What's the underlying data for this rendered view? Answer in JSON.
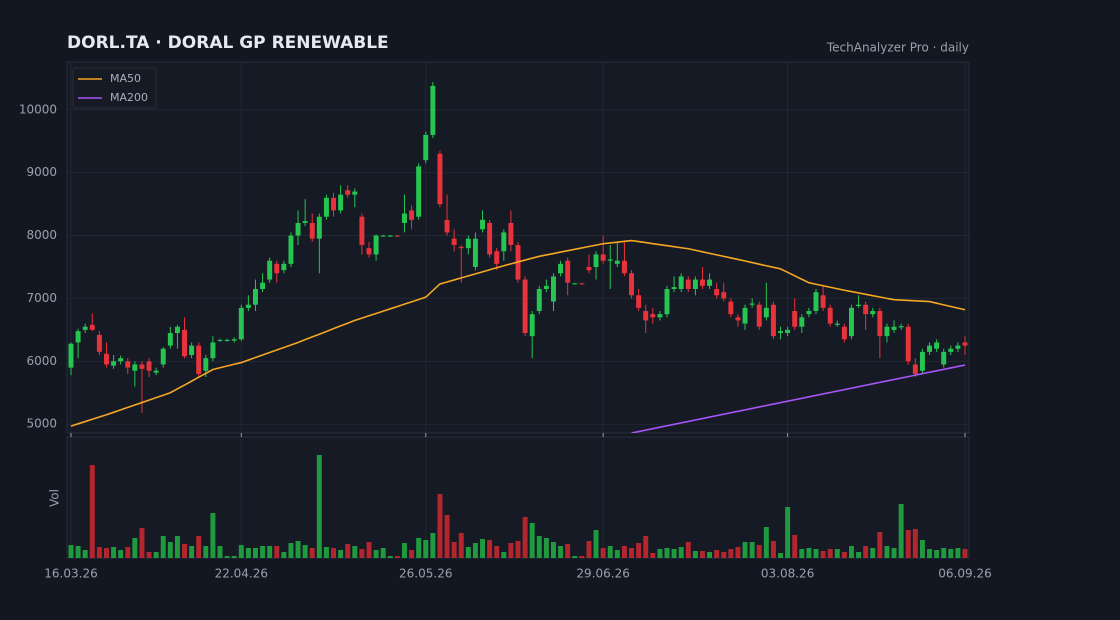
{
  "chart_data": {
    "type": "candlestick",
    "title": "DORL.TA  ·  DORAL GP RENEWABLE",
    "subtitle": "TechAnalyzer Pro · daily",
    "up_color": "#26c451",
    "down_color": "#e8323c",
    "volume_up_color": "#1f9a3f",
    "volume_down_color": "#b3262e",
    "grid": true,
    "legend": "upper left",
    "ylim": [
      4860,
      10760
    ],
    "yticks": [
      5000,
      6000,
      7000,
      8000,
      9000,
      10000
    ],
    "categories": [
      "16.03.26",
      null,
      null,
      null,
      null,
      null,
      null,
      null,
      null,
      null,
      null,
      null,
      null,
      null,
      null,
      null,
      null,
      null,
      null,
      null,
      null,
      null,
      null,
      null,
      "22.04.26",
      null,
      null,
      null,
      null,
      null,
      null,
      null,
      null,
      null,
      null,
      null,
      null,
      null,
      null,
      null,
      null,
      null,
      null,
      null,
      null,
      null,
      null,
      null,
      null,
      null,
      "26.05.26",
      null,
      null,
      null,
      null,
      null,
      null,
      null,
      null,
      null,
      null,
      null,
      null,
      null,
      null,
      null,
      null,
      null,
      null,
      null,
      null,
      null,
      null,
      null,
      null,
      "29.06.26",
      null,
      null,
      null,
      null,
      null,
      null,
      null,
      null,
      null,
      null,
      null,
      null,
      null,
      null,
      null,
      null,
      null,
      null,
      null,
      null,
      null,
      null,
      null,
      null,
      null,
      "03.08.26",
      null,
      null,
      null,
      null,
      null,
      null,
      null,
      null,
      null,
      null,
      null,
      null,
      null,
      null,
      null,
      null,
      null,
      null,
      null,
      null,
      null,
      null,
      null,
      null,
      "06.09.26"
    ],
    "ohlc": [
      [
        5900,
        6300,
        5780,
        6280
      ],
      [
        6300,
        6520,
        6050,
        6480
      ],
      [
        6500,
        6600,
        6450,
        6550
      ],
      [
        6580,
        6760,
        6480,
        6500
      ],
      [
        6420,
        6480,
        6100,
        6150
      ],
      [
        6120,
        6300,
        5900,
        5950
      ],
      [
        5930,
        6100,
        5880,
        6000
      ],
      [
        6000,
        6090,
        5950,
        6050
      ],
      [
        6000,
        6050,
        5800,
        5900
      ],
      [
        5850,
        6000,
        5600,
        5950
      ],
      [
        5950,
        6000,
        5180,
        5880
      ],
      [
        6000,
        6050,
        5750,
        5850
      ],
      [
        5820,
        5900,
        5780,
        5850
      ],
      [
        5950,
        6230,
        5900,
        6200
      ],
      [
        6250,
        6550,
        6200,
        6450
      ],
      [
        6450,
        6580,
        6200,
        6550
      ],
      [
        6500,
        6700,
        6050,
        6080
      ],
      [
        6100,
        6300,
        6050,
        6250
      ],
      [
        6250,
        6300,
        5750,
        5800
      ],
      [
        5850,
        6100,
        5750,
        6050
      ],
      [
        6050,
        6400,
        6000,
        6300
      ],
      [
        6330,
        6360,
        6310,
        6340
      ],
      [
        6330,
        6360,
        6310,
        6340
      ],
      [
        6330,
        6380,
        6300,
        6350
      ],
      [
        6350,
        6900,
        6320,
        6850
      ],
      [
        6850,
        7050,
        6800,
        6900
      ],
      [
        6900,
        7300,
        6800,
        7150
      ],
      [
        7150,
        7400,
        7100,
        7250
      ],
      [
        7300,
        7650,
        7250,
        7600
      ],
      [
        7550,
        7600,
        7250,
        7400
      ],
      [
        7450,
        7600,
        7400,
        7550
      ],
      [
        7550,
        8050,
        7500,
        8000
      ],
      [
        8000,
        8400,
        7850,
        8200
      ],
      [
        8200,
        8580,
        8150,
        8230
      ],
      [
        8200,
        8350,
        7900,
        7950
      ],
      [
        7950,
        8350,
        7400,
        8300
      ],
      [
        8300,
        8650,
        8250,
        8600
      ],
      [
        8600,
        8680,
        8300,
        8400
      ],
      [
        8400,
        8800,
        8350,
        8650
      ],
      [
        8720,
        8800,
        8600,
        8650
      ],
      [
        8650,
        8750,
        8450,
        8700
      ],
      [
        8300,
        8350,
        7700,
        7850
      ],
      [
        7800,
        7900,
        7650,
        7700
      ],
      [
        7700,
        8020,
        7600,
        8000
      ],
      [
        7990,
        8010,
        7980,
        8000
      ],
      [
        7990,
        8010,
        7980,
        8000
      ],
      [
        8000,
        8010,
        7980,
        7990
      ],
      [
        8200,
        8650,
        8050,
        8350
      ],
      [
        8400,
        8480,
        8100,
        8250
      ],
      [
        8300,
        9150,
        8250,
        9100
      ],
      [
        9200,
        9650,
        9150,
        9600
      ],
      [
        9600,
        10440,
        9550,
        10380
      ],
      [
        9300,
        9350,
        8450,
        8500
      ],
      [
        8250,
        8650,
        8000,
        8050
      ],
      [
        7950,
        8100,
        7750,
        7850
      ],
      [
        7820,
        7850,
        7250,
        7800
      ],
      [
        7800,
        8000,
        7700,
        7950
      ],
      [
        7500,
        8050,
        7450,
        7950
      ],
      [
        8100,
        8400,
        8050,
        8250
      ],
      [
        8200,
        8250,
        7650,
        7700
      ],
      [
        7750,
        7800,
        7450,
        7550
      ],
      [
        7750,
        8100,
        7600,
        8050
      ],
      [
        8200,
        8400,
        7750,
        7850
      ],
      [
        7850,
        7900,
        7250,
        7300
      ],
      [
        7300,
        7350,
        6400,
        6450
      ],
      [
        6400,
        6800,
        6050,
        6750
      ],
      [
        6800,
        7200,
        6750,
        7150
      ],
      [
        7150,
        7300,
        7100,
        7200
      ],
      [
        6950,
        7400,
        6800,
        7350
      ],
      [
        7400,
        7600,
        7350,
        7550
      ],
      [
        7600,
        7650,
        7050,
        7250
      ],
      [
        7230,
        7250,
        7220,
        7240
      ],
      [
        7240,
        7250,
        7220,
        7230
      ],
      [
        7500,
        7700,
        7400,
        7450
      ],
      [
        7500,
        7750,
        7300,
        7700
      ],
      [
        7700,
        8000,
        7550,
        7600
      ],
      [
        7600,
        7850,
        7150,
        7620
      ],
      [
        7550,
        7900,
        7500,
        7600
      ],
      [
        7600,
        7900,
        7350,
        7400
      ],
      [
        7400,
        7450,
        7000,
        7050
      ],
      [
        7050,
        7150,
        6800,
        6850
      ],
      [
        6800,
        6900,
        6450,
        6650
      ],
      [
        6750,
        6850,
        6600,
        6700
      ],
      [
        6700,
        6800,
        6650,
        6750
      ],
      [
        6750,
        7200,
        6700,
        7150
      ],
      [
        7150,
        7350,
        7100,
        7180
      ],
      [
        7150,
        7400,
        7100,
        7350
      ],
      [
        7300,
        7350,
        7100,
        7150
      ],
      [
        7150,
        7350,
        7050,
        7300
      ],
      [
        7300,
        7500,
        7150,
        7200
      ],
      [
        7200,
        7400,
        7150,
        7300
      ],
      [
        7150,
        7250,
        7000,
        7050
      ],
      [
        7100,
        7250,
        6950,
        7000
      ],
      [
        6950,
        7000,
        6700,
        6750
      ],
      [
        6700,
        6750,
        6550,
        6650
      ],
      [
        6600,
        6900,
        6500,
        6850
      ],
      [
        6900,
        7000,
        6850,
        6920
      ],
      [
        6900,
        6950,
        6500,
        6550
      ],
      [
        6700,
        7250,
        6650,
        6850
      ],
      [
        6900,
        6950,
        6350,
        6400
      ],
      [
        6450,
        6550,
        6350,
        6480
      ],
      [
        6450,
        6550,
        6400,
        6500
      ],
      [
        6800,
        7000,
        6500,
        6550
      ],
      [
        6550,
        6750,
        6450,
        6700
      ],
      [
        6750,
        6850,
        6700,
        6800
      ],
      [
        6800,
        7150,
        6750,
        7100
      ],
      [
        7050,
        7200,
        6800,
        6850
      ],
      [
        6850,
        6900,
        6550,
        6600
      ],
      [
        6580,
        6650,
        6550,
        6600
      ],
      [
        6550,
        6600,
        6300,
        6350
      ],
      [
        6400,
        6900,
        6350,
        6850
      ],
      [
        6880,
        7050,
        6850,
        6900
      ],
      [
        6900,
        6950,
        6500,
        6750
      ],
      [
        6750,
        6850,
        6700,
        6800
      ],
      [
        6800,
        6850,
        6050,
        6400
      ],
      [
        6400,
        6600,
        6300,
        6550
      ],
      [
        6500,
        6650,
        6450,
        6550
      ],
      [
        6540,
        6600,
        6500,
        6560
      ],
      [
        6550,
        6600,
        5950,
        6000
      ],
      [
        5950,
        6050,
        5750,
        5800
      ],
      [
        5850,
        6200,
        5800,
        6150
      ],
      [
        6150,
        6300,
        6100,
        6250
      ],
      [
        6200,
        6350,
        6150,
        6300
      ],
      [
        5950,
        6200,
        5900,
        6150
      ],
      [
        6150,
        6250,
        6100,
        6200
      ],
      [
        6200,
        6300,
        6150,
        6250
      ],
      [
        6300,
        6400,
        6100,
        6250
      ]
    ],
    "series": [
      {
        "name": "MA50",
        "color": "#f5a623",
        "values": [
          4970,
          5006,
          5042,
          5078,
          5114,
          5150,
          5189,
          5228,
          5267,
          5306,
          5344,
          5383,
          5422,
          5461,
          5500,
          5562,
          5623,
          5685,
          5747,
          5808,
          5870,
          5898,
          5925,
          5953,
          5980,
          6020,
          6060,
          6100,
          6140,
          6180,
          6220,
          6260,
          6300,
          6344,
          6388,
          6431,
          6475,
          6519,
          6563,
          6606,
          6650,
          6687,
          6724,
          6761,
          6798,
          6835,
          6872,
          6909,
          6946,
          6983,
          7020,
          7125,
          7230,
          7262,
          7294,
          7327,
          7359,
          7391,
          7423,
          7456,
          7488,
          7520,
          7550,
          7580,
          7610,
          7640,
          7670,
          7692,
          7714,
          7737,
          7759,
          7781,
          7803,
          7826,
          7848,
          7870,
          7883,
          7895,
          7908,
          7920,
          7904,
          7888,
          7871,
          7855,
          7839,
          7823,
          7806,
          7790,
          7766,
          7741,
          7717,
          7693,
          7669,
          7644,
          7620,
          7595,
          7570,
          7545,
          7520,
          7495,
          7470,
          7415,
          7360,
          7305,
          7250,
          7226,
          7202,
          7178,
          7154,
          7130,
          7109,
          7087,
          7066,
          7044,
          7023,
          7001,
          6980,
          6974,
          6968,
          6962,
          6956,
          6950,
          6924,
          6898,
          6872,
          6846,
          6820
        ]
      },
      {
        "name": "MA200",
        "color": "#a855f7",
        "values": [
          null,
          null,
          null,
          null,
          null,
          null,
          null,
          null,
          null,
          null,
          null,
          null,
          null,
          null,
          null,
          null,
          null,
          null,
          null,
          null,
          null,
          null,
          null,
          null,
          null,
          null,
          null,
          null,
          null,
          null,
          null,
          null,
          null,
          null,
          null,
          null,
          null,
          null,
          null,
          null,
          null,
          null,
          null,
          null,
          null,
          null,
          null,
          null,
          null,
          null,
          null,
          null,
          null,
          null,
          null,
          null,
          null,
          null,
          null,
          null,
          null,
          null,
          null,
          null,
          null,
          null,
          null,
          null,
          null,
          null,
          null,
          null,
          null,
          null,
          null,
          null,
          null,
          null,
          null,
          4860,
          4883,
          4906,
          4929,
          4952,
          4975,
          4998,
          5021,
          5044,
          5067,
          5090,
          5113,
          5136,
          5159,
          5182,
          5205,
          5228,
          5251,
          5274,
          5297,
          5320,
          5343,
          5366,
          5389,
          5412,
          5435,
          5458,
          5481,
          5504,
          5527,
          5550,
          5573,
          5596,
          5619,
          5642,
          5665,
          5688,
          5711,
          5734,
          5757,
          5780,
          5803,
          5826,
          5849,
          5872,
          5895,
          5918,
          5941
        ]
      }
    ],
    "volume": {
      "label": "Vol",
      "ylim": [
        0,
        120
      ],
      "values": [
        13,
        12,
        8,
        93,
        11,
        10,
        11,
        8,
        11,
        20,
        30,
        6,
        6,
        22,
        16,
        22,
        14,
        12,
        22,
        12,
        45,
        12,
        2,
        2,
        13,
        10,
        10,
        12,
        12,
        12,
        6,
        15,
        17,
        13,
        10,
        103,
        11,
        10,
        8,
        14,
        12,
        9,
        16,
        8,
        10,
        2,
        2,
        15,
        8,
        20,
        18,
        25,
        64,
        43,
        16,
        25,
        11,
        15,
        19,
        18,
        12,
        6,
        15,
        17,
        41,
        35,
        22,
        20,
        16,
        12,
        14,
        2,
        2,
        17,
        28,
        10,
        12,
        8,
        12,
        10,
        15,
        22,
        5,
        9,
        10,
        9,
        11,
        16,
        7,
        7,
        6,
        8,
        6,
        9,
        11,
        16,
        16,
        13,
        31,
        17,
        5,
        51,
        23,
        9,
        10,
        9,
        7,
        9,
        9,
        6,
        12,
        6,
        12,
        10,
        26,
        12,
        10,
        54,
        28,
        29,
        18,
        9,
        8,
        10,
        9,
        10,
        9
      ]
    }
  }
}
